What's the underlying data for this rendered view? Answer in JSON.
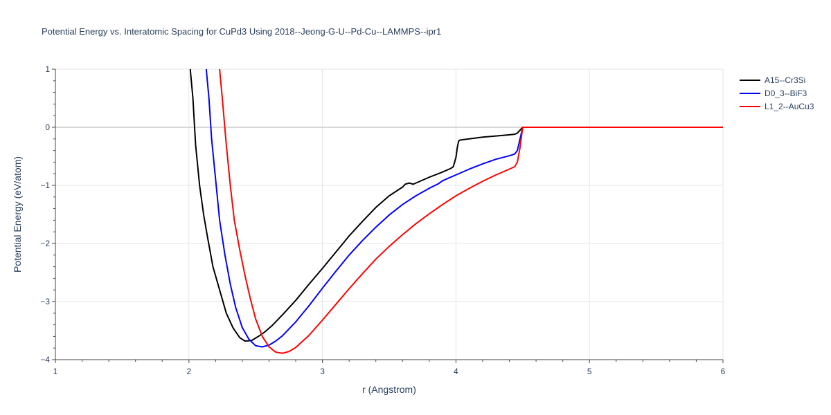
{
  "chart_data": {
    "type": "line",
    "title": "Potential Energy vs. Interatomic Spacing for CuPd3 Using 2018--Jeong-G-U--Pd-Cu--LAMMPS--ipr1",
    "xlabel": "r (Angstrom)",
    "ylabel": "Potential Energy (eV/atom)",
    "xlim": [
      1,
      6
    ],
    "ylim": [
      -4,
      1
    ],
    "x_ticks": [
      1,
      2,
      3,
      4,
      5,
      6
    ],
    "x_tick_labels": [
      "1",
      "2",
      "3",
      "4",
      "5",
      "6"
    ],
    "y_ticks": [
      -4,
      -3,
      -2,
      -1,
      0,
      1
    ],
    "y_tick_labels": [
      "−4",
      "−3",
      "−2",
      "−1",
      "0",
      "1"
    ],
    "grid": true,
    "legend_position": "top-right",
    "series": [
      {
        "name": "A15--Cr3Si",
        "color": "#000000",
        "x": [
          2.01,
          2.03,
          2.05,
          2.08,
          2.11,
          2.14,
          2.18,
          2.23,
          2.28,
          2.33,
          2.38,
          2.42,
          2.47,
          2.52,
          2.57,
          2.62,
          2.7,
          2.8,
          2.9,
          3.0,
          3.1,
          3.2,
          3.3,
          3.4,
          3.5,
          3.6,
          3.62,
          3.65,
          3.68,
          3.7,
          3.8,
          3.9,
          3.96,
          3.98,
          4.0,
          4.01,
          4.02,
          4.03,
          4.1,
          4.2,
          4.3,
          4.4,
          4.44,
          4.46,
          4.48,
          4.5,
          4.6,
          5.0,
          5.5,
          6.0
        ],
        "y": [
          1.0,
          0.5,
          -0.3,
          -1.0,
          -1.5,
          -1.9,
          -2.4,
          -2.8,
          -3.2,
          -3.45,
          -3.62,
          -3.68,
          -3.67,
          -3.6,
          -3.52,
          -3.42,
          -3.23,
          -2.98,
          -2.7,
          -2.43,
          -2.15,
          -1.87,
          -1.62,
          -1.38,
          -1.18,
          -1.03,
          -0.98,
          -0.96,
          -0.98,
          -0.96,
          -0.86,
          -0.77,
          -0.71,
          -0.68,
          -0.52,
          -0.35,
          -0.24,
          -0.22,
          -0.2,
          -0.17,
          -0.15,
          -0.13,
          -0.12,
          -0.1,
          -0.05,
          0.0,
          0.0,
          0.0,
          0.0,
          0.0
        ]
      },
      {
        "name": "D0_3--BiF3",
        "color": "#0000ff",
        "x": [
          2.13,
          2.15,
          2.17,
          2.2,
          2.23,
          2.27,
          2.31,
          2.35,
          2.4,
          2.45,
          2.5,
          2.55,
          2.6,
          2.65,
          2.7,
          2.8,
          2.9,
          3.0,
          3.1,
          3.2,
          3.3,
          3.4,
          3.5,
          3.6,
          3.7,
          3.8,
          3.87,
          3.9,
          3.95,
          4.0,
          4.1,
          4.2,
          4.3,
          4.4,
          4.44,
          4.46,
          4.48,
          4.5,
          4.6,
          5.0,
          5.5,
          6.0
        ],
        "y": [
          1.0,
          0.5,
          -0.2,
          -0.9,
          -1.6,
          -2.2,
          -2.7,
          -3.1,
          -3.45,
          -3.65,
          -3.76,
          -3.78,
          -3.75,
          -3.68,
          -3.59,
          -3.35,
          -3.07,
          -2.77,
          -2.48,
          -2.2,
          -1.95,
          -1.72,
          -1.51,
          -1.33,
          -1.18,
          -1.05,
          -0.97,
          -0.92,
          -0.87,
          -0.82,
          -0.72,
          -0.63,
          -0.55,
          -0.49,
          -0.46,
          -0.4,
          -0.2,
          0.0,
          0.0,
          0.0,
          0.0,
          0.0
        ]
      },
      {
        "name": "L1_2--AuCu3",
        "color": "#ff0000",
        "x": [
          2.23,
          2.25,
          2.28,
          2.31,
          2.34,
          2.38,
          2.42,
          2.46,
          2.5,
          2.55,
          2.6,
          2.65,
          2.7,
          2.75,
          2.8,
          2.9,
          3.0,
          3.1,
          3.2,
          3.3,
          3.4,
          3.5,
          3.6,
          3.7,
          3.8,
          3.9,
          4.0,
          4.1,
          4.2,
          4.3,
          4.4,
          4.44,
          4.46,
          4.48,
          4.5,
          4.6,
          5.0,
          5.5,
          6.0
        ],
        "y": [
          1.0,
          0.5,
          -0.3,
          -1.0,
          -1.6,
          -2.1,
          -2.55,
          -2.95,
          -3.3,
          -3.6,
          -3.78,
          -3.87,
          -3.89,
          -3.86,
          -3.79,
          -3.58,
          -3.32,
          -3.05,
          -2.78,
          -2.52,
          -2.27,
          -2.05,
          -1.85,
          -1.66,
          -1.49,
          -1.33,
          -1.18,
          -1.05,
          -0.93,
          -0.82,
          -0.72,
          -0.68,
          -0.6,
          -0.35,
          0.0,
          0.0,
          0.0,
          0.0,
          0.0
        ]
      }
    ]
  }
}
